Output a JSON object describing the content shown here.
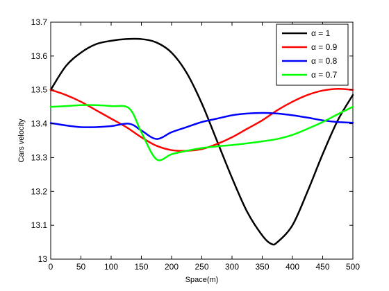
{
  "chart_data": {
    "type": "line",
    "title": "",
    "xlabel": "Space(m)",
    "ylabel": "Cars velocity",
    "xlim": [
      0,
      500
    ],
    "ylim": [
      13,
      13.7
    ],
    "xticks": [
      0,
      50,
      100,
      150,
      200,
      250,
      300,
      350,
      400,
      450,
      500
    ],
    "xtick_labels": [
      "0",
      "50",
      "100",
      "150",
      "200",
      "250",
      "300",
      "350",
      "400",
      "450",
      "500"
    ],
    "yticks": [
      13,
      13.1,
      13.2,
      13.3,
      13.4,
      13.5,
      13.6,
      13.7
    ],
    "ytick_labels": [
      "13",
      "13.1",
      "13.2",
      "13.3",
      "13.4",
      "13.5",
      "13.6",
      "13.7"
    ],
    "grid": false,
    "legend_position": "top-right",
    "series": [
      {
        "name": "α = 1",
        "color": "#000000",
        "x": [
          0,
          25,
          50,
          75,
          100,
          125,
          150,
          175,
          200,
          225,
          250,
          275,
          300,
          325,
          350,
          365,
          375,
          400,
          425,
          450,
          475,
          500
        ],
        "y": [
          13.5,
          13.57,
          13.61,
          13.635,
          13.645,
          13.65,
          13.65,
          13.64,
          13.61,
          13.55,
          13.46,
          13.35,
          13.24,
          13.14,
          13.07,
          13.045,
          13.05,
          13.1,
          13.2,
          13.31,
          13.41,
          13.485
        ]
      },
      {
        "name": "α = 0.9",
        "color": "#ff0000",
        "x": [
          0,
          25,
          50,
          75,
          100,
          125,
          150,
          175,
          200,
          225,
          250,
          275,
          300,
          325,
          350,
          375,
          400,
          425,
          450,
          475,
          500
        ],
        "y": [
          13.5,
          13.485,
          13.465,
          13.44,
          13.415,
          13.39,
          13.36,
          13.335,
          13.322,
          13.32,
          13.325,
          13.34,
          13.36,
          13.385,
          13.41,
          13.44,
          13.465,
          13.485,
          13.498,
          13.503,
          13.5
        ]
      },
      {
        "name": "α = 0.8",
        "color": "#0000ff",
        "x": [
          0,
          25,
          50,
          75,
          100,
          130,
          150,
          175,
          200,
          225,
          250,
          275,
          300,
          325,
          350,
          375,
          400,
          425,
          450,
          475,
          500
        ],
        "y": [
          13.402,
          13.395,
          13.39,
          13.39,
          13.393,
          13.4,
          13.38,
          13.355,
          13.375,
          13.39,
          13.405,
          13.415,
          13.425,
          13.43,
          13.432,
          13.43,
          13.425,
          13.418,
          13.41,
          13.405,
          13.403
        ]
      },
      {
        "name": "α = 0.7",
        "color": "#00ff00",
        "x": [
          0,
          25,
          50,
          75,
          100,
          130,
          150,
          175,
          200,
          225,
          250,
          275,
          300,
          325,
          350,
          375,
          400,
          425,
          450,
          475,
          500
        ],
        "y": [
          13.45,
          13.452,
          13.455,
          13.455,
          13.452,
          13.445,
          13.375,
          13.295,
          13.31,
          13.32,
          13.328,
          13.333,
          13.337,
          13.342,
          13.348,
          13.355,
          13.367,
          13.385,
          13.405,
          13.428,
          13.45
        ]
      }
    ]
  }
}
